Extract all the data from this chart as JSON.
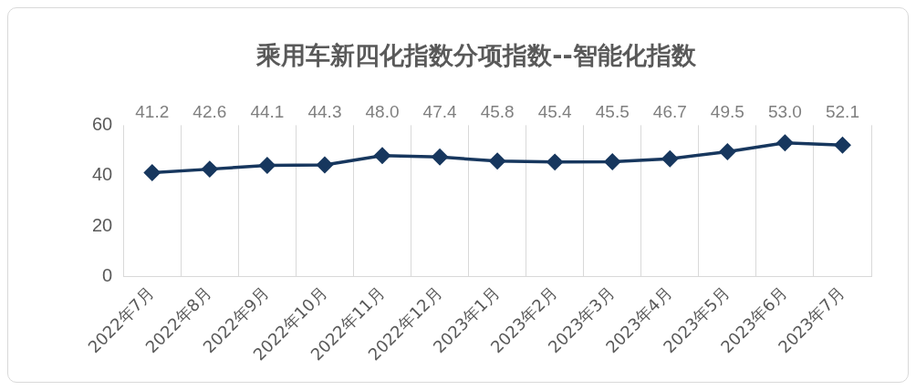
{
  "chart_data": {
    "type": "line",
    "title": "乘用车新四化指数分项指数--智能化指数",
    "categories": [
      "2022年7月",
      "2022年8月",
      "2022年9月",
      "2022年10月",
      "2022年11月",
      "2022年12月",
      "2023年1月",
      "2023年2月",
      "2023年3月",
      "2023年4月",
      "2023年5月",
      "2023年6月",
      "2023年7月"
    ],
    "series": [
      {
        "color": "#17375e",
        "values": [
          41.2,
          42.6,
          44.1,
          44.3,
          48.0,
          47.4,
          45.8,
          45.4,
          45.5,
          46.7,
          49.5,
          53.0,
          52.1
        ],
        "value_labels": [
          "41.2",
          "42.6",
          "44.1",
          "44.3",
          "48.0",
          "47.4",
          "45.8",
          "45.4",
          "45.5",
          "46.7",
          "49.5",
          "53.0",
          "52.1"
        ]
      }
    ],
    "ylim": [
      0,
      60
    ],
    "yticks": [
      0,
      20,
      40,
      60
    ],
    "grid": "x",
    "legend": false,
    "marker": "diamond",
    "line_style": "solid"
  }
}
